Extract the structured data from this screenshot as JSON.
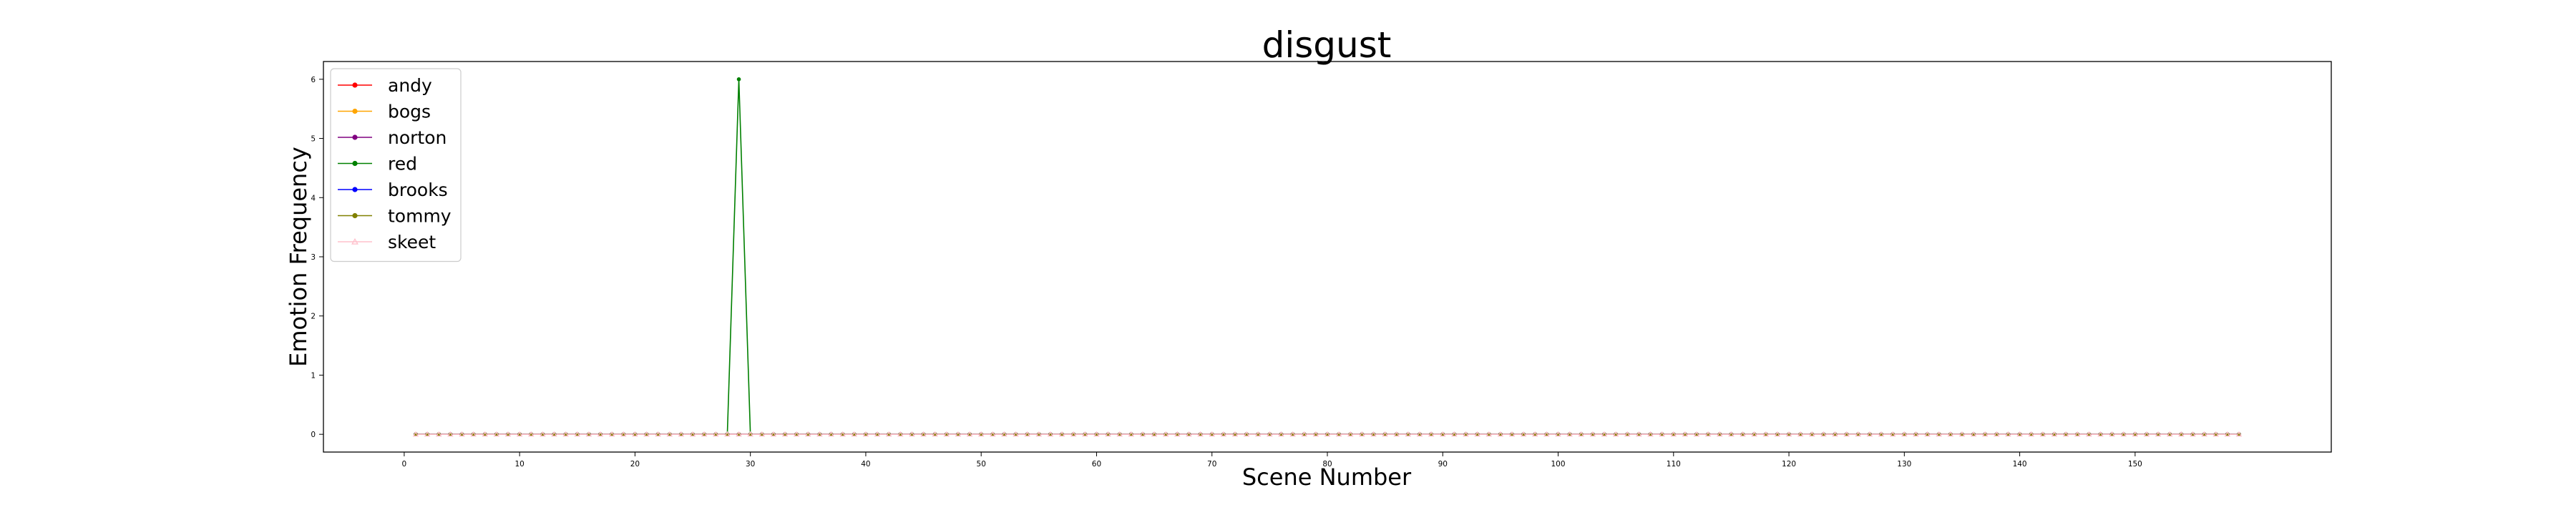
{
  "chart_data": {
    "type": "line",
    "title": "disgust",
    "xlabel": "Scene Number",
    "ylabel": "Emotion Frequency",
    "x_start": 1,
    "x_end": 159,
    "xlim": [
      -7,
      167
    ],
    "ylim": [
      -0.3,
      6.3
    ],
    "x_ticks": [
      0,
      10,
      20,
      30,
      40,
      50,
      60,
      70,
      80,
      90,
      100,
      110,
      120,
      130,
      140,
      150
    ],
    "y_ticks": [
      0,
      1,
      2,
      3,
      4,
      5,
      6
    ],
    "grid": false,
    "legend_position": "top-left",
    "series": [
      {
        "name": "andy",
        "color": "#ff0000",
        "marker": "circle",
        "baseline": 0,
        "spikes": []
      },
      {
        "name": "bogs",
        "color": "#ffa500",
        "marker": "circle",
        "baseline": 0,
        "spikes": []
      },
      {
        "name": "norton",
        "color": "#800080",
        "marker": "circle",
        "baseline": 0,
        "spikes": []
      },
      {
        "name": "red",
        "color": "#008000",
        "marker": "circle",
        "baseline": 0,
        "spikes": [
          {
            "x": 29,
            "y": 6
          }
        ]
      },
      {
        "name": "brooks",
        "color": "#0000ff",
        "marker": "circle",
        "baseline": 0,
        "spikes": []
      },
      {
        "name": "tommy",
        "color": "#808000",
        "marker": "circle",
        "baseline": 0,
        "spikes": []
      },
      {
        "name": "skeet",
        "color": "#ffc0cb",
        "marker": "triangle",
        "baseline": 0,
        "spikes": []
      }
    ]
  }
}
